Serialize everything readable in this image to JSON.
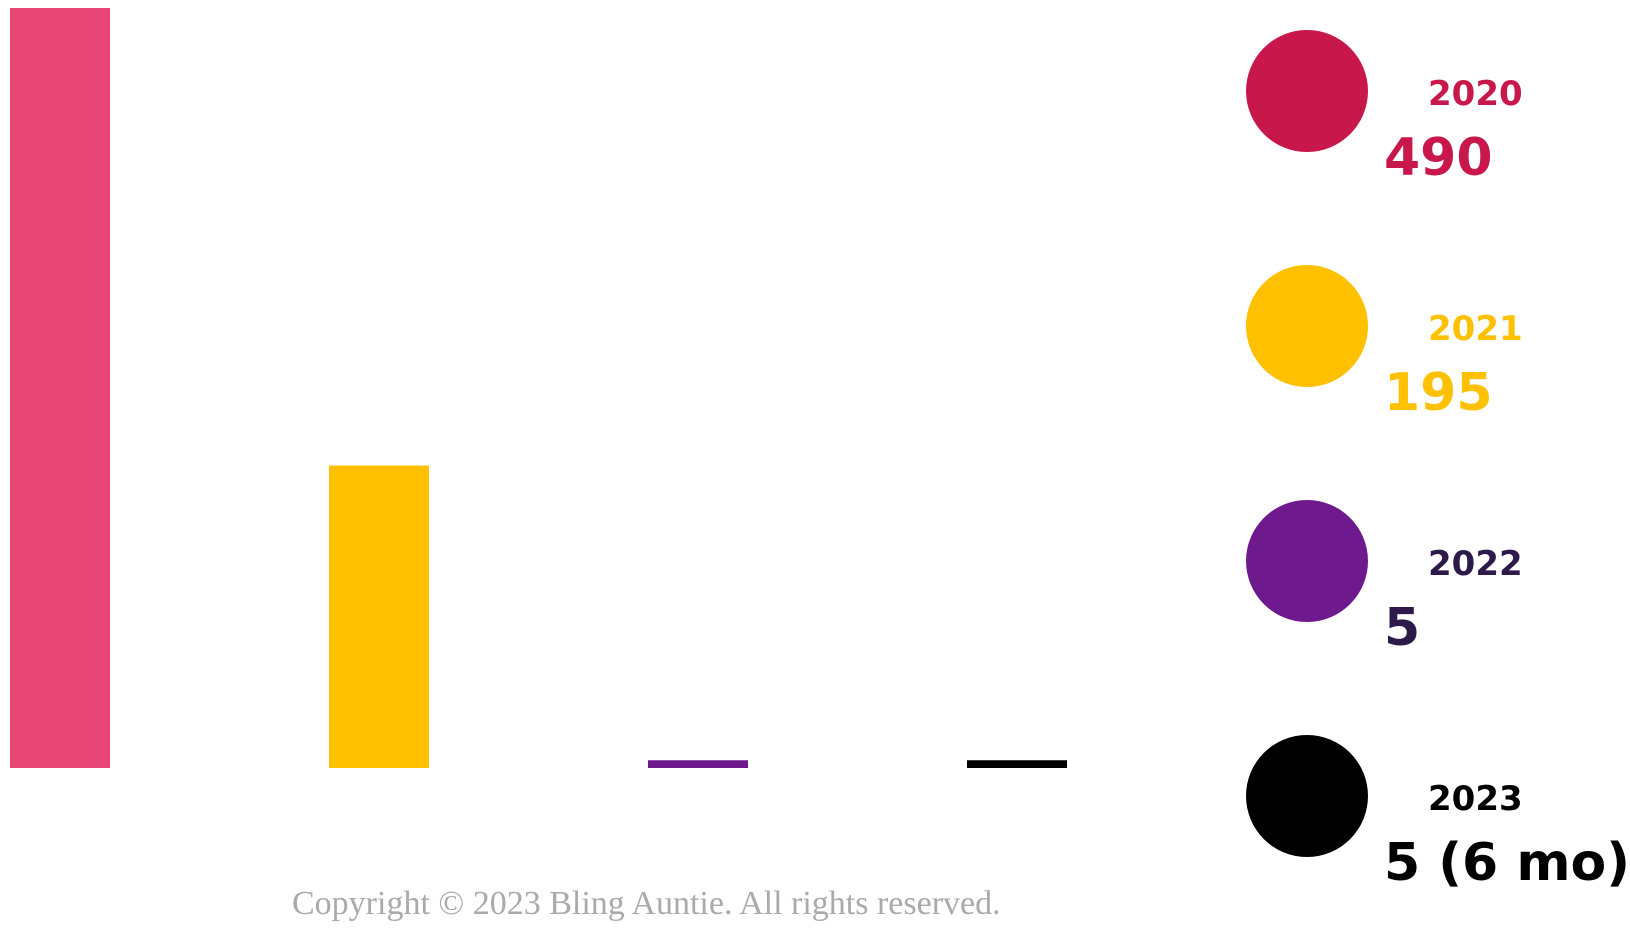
{
  "chart_data": {
    "type": "bar",
    "categories": [
      "2020",
      "2021",
      "2022",
      "2023"
    ],
    "values": [
      490,
      195,
      5,
      5
    ],
    "value_labels": [
      "490",
      "195",
      "5",
      "5 (6 mo)"
    ],
    "colors": [
      "#E84677",
      "#FFC000",
      "#6E1A8E",
      "#000000"
    ],
    "legend_dot_colors": [
      "#C8174A",
      "#FFC000",
      "#6E1A8E",
      "#000000"
    ],
    "label_colors": [
      "#C8174A",
      "#FFC000",
      "#2E1A4A",
      "#000000"
    ],
    "ylim": [
      0,
      490
    ],
    "legend_position": "right",
    "grid": false
  },
  "copyright": "Copyright © 2023 Bling Auntie. All rights reserved."
}
